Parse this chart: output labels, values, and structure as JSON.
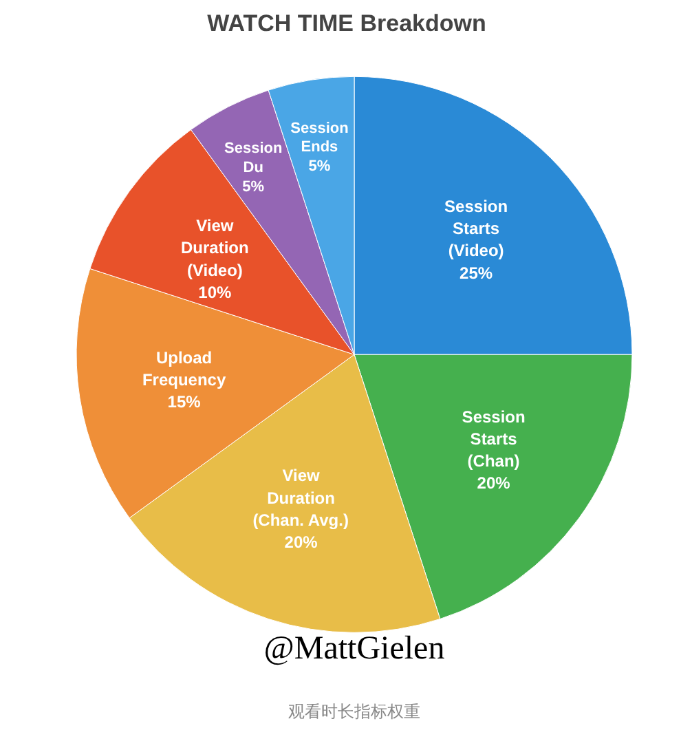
{
  "chart_data": {
    "type": "pie",
    "title": "WATCH TIME Breakdown",
    "categories": [
      "Session Starts (Video)",
      "Session Starts (Chan)",
      "View Duration (Chan. Avg.)",
      "Upload Frequency",
      "View Duration (Video)",
      "Session Du",
      "Session Ends"
    ],
    "values": [
      25,
      20,
      20,
      15,
      10,
      5,
      5
    ],
    "colors": [
      "#2a8ad6",
      "#45b04e",
      "#e8bd48",
      "#ef8f38",
      "#e8522a",
      "#9466b4",
      "#4aa6e6"
    ],
    "value_labels": [
      "25%",
      "20%",
      "20%",
      "15%",
      "10%",
      "5%",
      "5%"
    ],
    "annotations": [
      "@MattGielen",
      "观看时长指标权重"
    ]
  }
}
